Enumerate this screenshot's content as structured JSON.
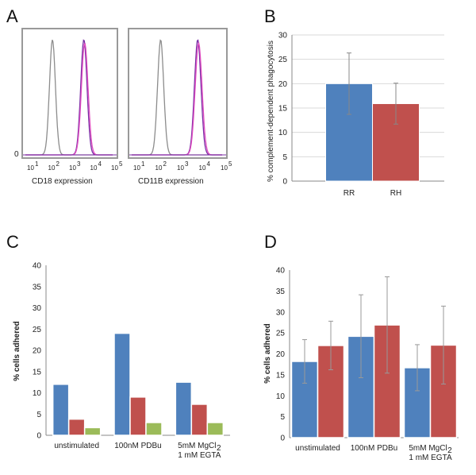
{
  "panels": {
    "A": "A",
    "B": "B",
    "C": "C",
    "D": "D"
  },
  "colors": {
    "blue": "#4f81bd",
    "red": "#c0504d",
    "green": "#9bbb59",
    "grey_trace": "#8c8c8c",
    "purple_trace": "#7a2fa6",
    "pink_trace": "#e04cc0"
  },
  "chart_data": [
    {
      "panel": "A",
      "type": "line",
      "subplots": [
        {
          "xlabel": "CD18 expression",
          "ylabel_tick": "0",
          "x_tick_labels": [
            "10",
            "1",
            "10",
            "2",
            "10",
            "3",
            "10",
            "4",
            "10",
            "5"
          ],
          "x_ticks": [
            {
              "base": "10",
              "exp": "1"
            },
            {
              "base": "10",
              "exp": "2"
            },
            {
              "base": "10",
              "exp": "3"
            },
            {
              "base": "10",
              "exp": "4"
            },
            {
              "base": "10",
              "exp": "5"
            }
          ],
          "series": [
            {
              "color": "#8c8c8c",
              "peak_log": 1.55
            },
            {
              "color": "#7a2fa6",
              "peak_log": 3.35
            },
            {
              "color": "#e04cc0",
              "peak_log": 3.4
            }
          ]
        },
        {
          "xlabel": "CD11B expression",
          "ylabel_tick": "",
          "x_tick_labels": [
            "10",
            "1",
            "10",
            "2",
            "10",
            "3",
            "10",
            "4",
            "10",
            "5"
          ],
          "x_ticks": [
            {
              "base": "10",
              "exp": "1"
            },
            {
              "base": "10",
              "exp": "2"
            },
            {
              "base": "10",
              "exp": "3"
            },
            {
              "base": "10",
              "exp": "4"
            },
            {
              "base": "10",
              "exp": "5"
            }
          ],
          "series": [
            {
              "color": "#8c8c8c",
              "peak_log": 1.6
            },
            {
              "color": "#7a2fa6",
              "peak_log": 3.65
            },
            {
              "color": "#e04cc0",
              "peak_log": 3.7
            }
          ]
        }
      ]
    },
    {
      "panel": "B",
      "type": "bar",
      "ylabel": "% complement-dependent phagocytosis",
      "ylim": [
        0,
        30
      ],
      "yticks": [
        0,
        5,
        10,
        15,
        20,
        25,
        30
      ],
      "categories": [
        "RR",
        "RH"
      ],
      "values": [
        20,
        15.9
      ],
      "errors": [
        6.3,
        4.2
      ],
      "colors": [
        "#4f81bd",
        "#c0504d"
      ],
      "grid": true
    },
    {
      "panel": "C",
      "type": "bar",
      "ylabel": "% cells adhered",
      "ylim": [
        0,
        40
      ],
      "yticks": [
        0,
        5,
        10,
        15,
        20,
        25,
        30,
        35,
        40
      ],
      "categories": [
        "unstimulated",
        "100nM PDBu",
        "5mM MgCl2 1 mM EGTA"
      ],
      "category_lines": [
        [
          "unstimulated"
        ],
        [
          "100nM PDBu"
        ],
        [
          "5mM MgCl",
          "2",
          "1 mM EGTA"
        ]
      ],
      "series": [
        {
          "color": "#4f81bd",
          "values": [
            12,
            24,
            12.5
          ]
        },
        {
          "color": "#c0504d",
          "values": [
            3.8,
            9,
            7.3
          ]
        },
        {
          "color": "#9bbb59",
          "values": [
            1.8,
            3,
            3
          ]
        }
      ],
      "grid": false
    },
    {
      "panel": "D",
      "type": "bar",
      "ylabel": "% cells adhered",
      "ylim": [
        0,
        40
      ],
      "yticks": [
        0,
        5,
        10,
        15,
        20,
        25,
        30,
        35,
        40
      ],
      "categories": [
        "unstimulated",
        "100nM PDBu",
        "5mM MgCl2 1 mM EGTA"
      ],
      "category_lines": [
        [
          "unstimulated"
        ],
        [
          "100nM PDBu"
        ],
        [
          "5mM MgCl",
          "2",
          "1 mM EGTA"
        ]
      ],
      "series": [
        {
          "color": "#4f81bd",
          "values": [
            18.2,
            24.2,
            16.7
          ],
          "errors": [
            5.2,
            9.9,
            5.5
          ]
        },
        {
          "color": "#c0504d",
          "values": [
            22,
            26.9,
            22.1
          ],
          "errors": [
            5.8,
            11.5,
            9.3
          ]
        }
      ],
      "grid": false
    }
  ]
}
